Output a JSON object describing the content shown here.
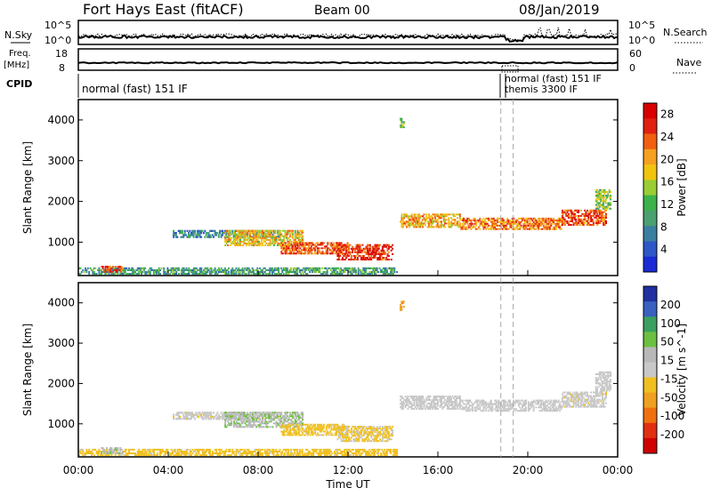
{
  "header": {
    "title": "Fort Hays East (fitACF)",
    "beam": "Beam 00",
    "date": "08/Jan/2019"
  },
  "colors": {
    "power": [
      "#1a2bd6",
      "#2e57c8",
      "#3a7fa0",
      "#4aa070",
      "#3cb24a",
      "#9acd32",
      "#f1c40f",
      "#f5a020",
      "#f06010",
      "#e02010",
      "#d80000"
    ],
    "velocity": [
      "#2030a0",
      "#3a60c0",
      "#3aa060",
      "#6cc040",
      "#b8b8b8",
      "#c8c8c8",
      "#f0c020",
      "#f0a020",
      "#f07010",
      "#e03010",
      "#d00000"
    ]
  },
  "chart_data": [
    {
      "type": "line",
      "name": "N.Sky / N.Search",
      "left_label": "N.Sky",
      "right_label": "N.Search",
      "y_ticks_left": [
        "10^5",
        "10^0"
      ],
      "y_ticks_right": [
        "10^5",
        "10^0"
      ],
      "y_scale": "log",
      "ylim": [
        1,
        100000
      ]
    },
    {
      "type": "line",
      "name": "Freq / Nave",
      "left_label": "Freq.",
      "left_unit": "[MHz]",
      "right_label": "Nave",
      "y_ticks_left": [
        "18",
        "8"
      ],
      "y_ticks_right": [
        "60",
        "0"
      ],
      "ylim_left": [
        8,
        18
      ],
      "ylim_right": [
        0,
        60
      ]
    },
    {
      "type": "table",
      "name": "CPID",
      "label": "CPID",
      "segments": [
        {
          "start_hour": 0,
          "text": "normal (fast) 151 IF"
        },
        {
          "start_hour": 18.8,
          "text": "normal (fast) 151 IF"
        },
        {
          "start_hour": 19.3,
          "text": "themis 3300 IF"
        }
      ]
    },
    {
      "type": "heatmap",
      "name": "Power",
      "ylabel": "Slant Range [km]",
      "y_ticks": [
        1000,
        2000,
        3000,
        4000
      ],
      "ylim": [
        180,
        4500
      ],
      "colorbar_label": "Power [dB]",
      "colorbar_ticks": [
        4,
        8,
        12,
        16,
        20,
        24,
        28
      ],
      "colorbar_range": [
        0,
        30
      ],
      "blobs": [
        {
          "t0": 0.0,
          "t1": 14.2,
          "r0": 200,
          "r1": 380,
          "value": 10
        },
        {
          "t0": 1.0,
          "t1": 2.0,
          "r0": 250,
          "r1": 420,
          "value": 25
        },
        {
          "t0": 4.2,
          "t1": 9.0,
          "r0": 1100,
          "r1": 1300,
          "value": 8
        },
        {
          "t0": 6.5,
          "t1": 10.0,
          "r0": 900,
          "r1": 1300,
          "value": 18
        },
        {
          "t0": 9.0,
          "t1": 12.0,
          "r0": 700,
          "r1": 1000,
          "value": 24
        },
        {
          "t0": 11.5,
          "t1": 14.0,
          "r0": 550,
          "r1": 950,
          "value": 26
        },
        {
          "t0": 14.3,
          "t1": 17.0,
          "r0": 1350,
          "r1": 1700,
          "value": 20
        },
        {
          "t0": 17.0,
          "t1": 21.5,
          "r0": 1300,
          "r1": 1600,
          "value": 22
        },
        {
          "t0": 21.5,
          "t1": 23.5,
          "r0": 1400,
          "r1": 1800,
          "value": 24
        },
        {
          "t0": 23.0,
          "t1": 23.7,
          "r0": 1800,
          "r1": 2300,
          "value": 14
        },
        {
          "t0": 14.3,
          "t1": 14.5,
          "r0": 3800,
          "r1": 4050,
          "value": 12
        }
      ]
    },
    {
      "type": "heatmap",
      "name": "Velocity",
      "ylabel": "Slant Range [km]",
      "y_ticks": [
        1000,
        2000,
        3000,
        4000
      ],
      "ylim": [
        180,
        4500
      ],
      "colorbar_label": "Velocity [m s^-1]",
      "colorbar_ticks": [
        200,
        100,
        50,
        15,
        -15,
        -50,
        -100,
        -200
      ],
      "colorbar_range": [
        -250,
        250
      ],
      "xlabel": "Time UT",
      "x_ticks": [
        "00:00",
        "04:00",
        "08:00",
        "12:00",
        "16:00",
        "20:00",
        "00:00"
      ],
      "xlim_hours": [
        0,
        24
      ],
      "blobs": [
        {
          "t0": 0.0,
          "t1": 14.2,
          "r0": 200,
          "r1": 380,
          "value": -40
        },
        {
          "t0": 1.0,
          "t1": 2.0,
          "r0": 250,
          "r1": 420,
          "value": 60
        },
        {
          "t0": 4.2,
          "t1": 9.0,
          "r0": 1100,
          "r1": 1300,
          "value": -5
        },
        {
          "t0": 6.5,
          "t1": 10.0,
          "r0": 900,
          "r1": 1300,
          "value": 60
        },
        {
          "t0": 9.0,
          "t1": 12.0,
          "r0": 700,
          "r1": 1000,
          "value": -40
        },
        {
          "t0": 11.5,
          "t1": 14.0,
          "r0": 550,
          "r1": 950,
          "value": -30
        },
        {
          "t0": 14.3,
          "t1": 17.0,
          "r0": 1350,
          "r1": 1700,
          "value": 0
        },
        {
          "t0": 17.0,
          "t1": 21.5,
          "r0": 1300,
          "r1": 1600,
          "value": 5
        },
        {
          "t0": 21.5,
          "t1": 23.5,
          "r0": 1400,
          "r1": 1800,
          "value": -5
        },
        {
          "t0": 23.0,
          "t1": 23.7,
          "r0": 1800,
          "r1": 2300,
          "value": 0
        },
        {
          "t0": 14.3,
          "t1": 14.5,
          "r0": 3800,
          "r1": 4050,
          "value": -100
        }
      ]
    }
  ]
}
